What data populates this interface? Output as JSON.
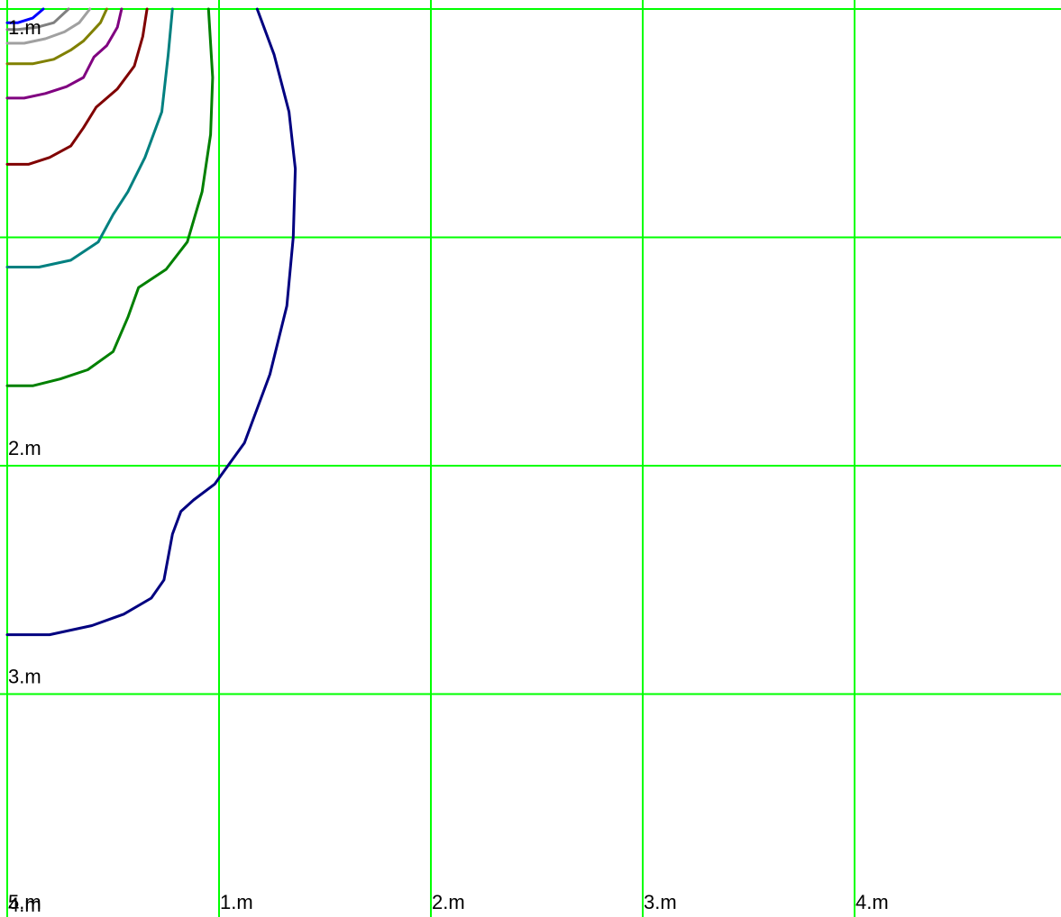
{
  "chart_data": {
    "type": "line",
    "title": "",
    "xlabel": "",
    "ylabel": "",
    "xlim": [
      0,
      4.95
    ],
    "ylim": [
      5,
      0
    ],
    "grid": true,
    "grid_color": "#00ff00",
    "x_ticks": [
      {
        "value": 1,
        "label": "1.m"
      },
      {
        "value": 2,
        "label": "2.m"
      },
      {
        "value": 3,
        "label": "3.m"
      },
      {
        "value": 4,
        "label": "4.m"
      }
    ],
    "y_ticks": [
      {
        "value": 1,
        "label": "1.m"
      },
      {
        "value": 2,
        "label": "2.m"
      },
      {
        "value": 3,
        "label": "3.m"
      },
      {
        "value": 4,
        "label": "4.m"
      },
      {
        "value": 5,
        "label": "5.m"
      }
    ],
    "series": [
      {
        "color": "#000080",
        "points": [
          [
            1.18,
            0
          ],
          [
            1.26,
            0.2
          ],
          [
            1.33,
            0.45
          ],
          [
            1.36,
            0.7
          ],
          [
            1.35,
            1.0
          ],
          [
            1.32,
            1.3
          ],
          [
            1.24,
            1.6
          ],
          [
            1.12,
            1.9
          ],
          [
            0.98,
            2.08
          ],
          [
            0.88,
            2.15
          ],
          [
            0.82,
            2.2
          ],
          [
            0.78,
            2.3
          ],
          [
            0.74,
            2.5
          ],
          [
            0.68,
            2.58
          ],
          [
            0.55,
            2.65
          ],
          [
            0.4,
            2.7
          ],
          [
            0.2,
            2.74
          ],
          [
            0,
            2.74
          ]
        ]
      },
      {
        "color": "#008000",
        "points": [
          [
            0.95,
            0
          ],
          [
            0.97,
            0.3
          ],
          [
            0.96,
            0.55
          ],
          [
            0.92,
            0.8
          ],
          [
            0.85,
            1.02
          ],
          [
            0.75,
            1.14
          ],
          [
            0.62,
            1.22
          ],
          [
            0.57,
            1.35
          ],
          [
            0.5,
            1.5
          ],
          [
            0.38,
            1.58
          ],
          [
            0.25,
            1.62
          ],
          [
            0.12,
            1.65
          ],
          [
            0,
            1.65
          ]
        ]
      },
      {
        "color": "#008080",
        "points": [
          [
            0.78,
            0
          ],
          [
            0.76,
            0.2
          ],
          [
            0.73,
            0.45
          ],
          [
            0.65,
            0.65
          ],
          [
            0.57,
            0.8
          ],
          [
            0.5,
            0.9
          ],
          [
            0.43,
            1.02
          ],
          [
            0.3,
            1.1
          ],
          [
            0.15,
            1.13
          ],
          [
            0,
            1.13
          ]
        ]
      },
      {
        "color": "#800000",
        "points": [
          [
            0.66,
            0
          ],
          [
            0.64,
            0.12
          ],
          [
            0.6,
            0.25
          ],
          [
            0.52,
            0.35
          ],
          [
            0.42,
            0.43
          ],
          [
            0.36,
            0.52
          ],
          [
            0.3,
            0.6
          ],
          [
            0.2,
            0.65
          ],
          [
            0.1,
            0.68
          ],
          [
            0,
            0.68
          ]
        ]
      },
      {
        "color": "#800080",
        "points": [
          [
            0.54,
            0
          ],
          [
            0.52,
            0.08
          ],
          [
            0.47,
            0.16
          ],
          [
            0.41,
            0.21
          ],
          [
            0.36,
            0.3
          ],
          [
            0.28,
            0.34
          ],
          [
            0.18,
            0.37
          ],
          [
            0.08,
            0.39
          ],
          [
            0,
            0.39
          ]
        ]
      },
      {
        "color": "#808000",
        "points": [
          [
            0.47,
            0
          ],
          [
            0.44,
            0.06
          ],
          [
            0.36,
            0.14
          ],
          [
            0.3,
            0.18
          ],
          [
            0.22,
            0.22
          ],
          [
            0.12,
            0.24
          ],
          [
            0,
            0.24
          ]
        ]
      },
      {
        "color": "#a0a0a0",
        "points": [
          [
            0.39,
            0
          ],
          [
            0.34,
            0.06
          ],
          [
            0.27,
            0.1
          ],
          [
            0.18,
            0.13
          ],
          [
            0.08,
            0.15
          ],
          [
            0,
            0.15
          ]
        ]
      },
      {
        "color": "#808080",
        "points": [
          [
            0.29,
            0
          ],
          [
            0.22,
            0.06
          ],
          [
            0.14,
            0.08
          ],
          [
            0.05,
            0.09
          ],
          [
            0,
            0.09
          ]
        ]
      },
      {
        "color": "#0000ff",
        "points": [
          [
            0.17,
            0
          ],
          [
            0.12,
            0.04
          ],
          [
            0.05,
            0.06
          ],
          [
            0,
            0.06
          ]
        ]
      }
    ]
  }
}
